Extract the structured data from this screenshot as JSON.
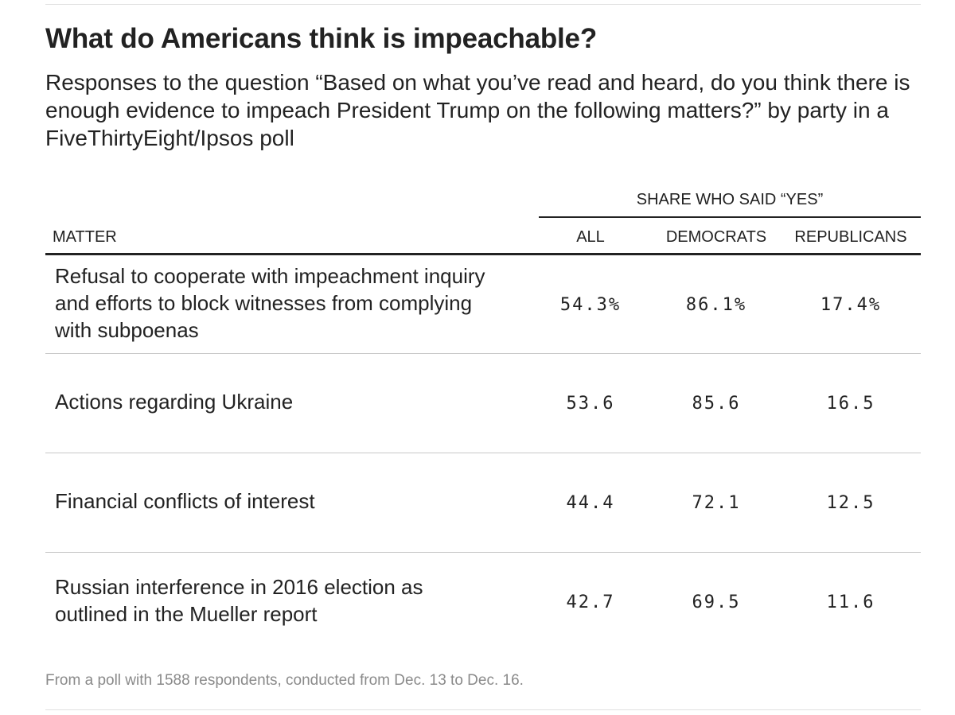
{
  "chart_data": {
    "type": "table",
    "title": "What do Americans think is impeachable?",
    "subtitle": "Responses to the question “Based on what you’ve read and heard, do you think there is enough evidence to impeach President Trump on the following matters?” by party in a FiveThirtyEight/Ipsos poll",
    "group_header": "SHARE WHO SAID “YES”",
    "columns": [
      "MATTER",
      "ALL",
      "DEMOCRATS",
      "REPUBLICANS"
    ],
    "rows": [
      {
        "matter": "Refusal to cooperate with impeachment inquiry and efforts to block witnesses from complying with subpoenas",
        "all": 54.3,
        "democrats": 86.1,
        "republicans": 17.4,
        "all_label": "54.3%",
        "democrats_label": "86.1%",
        "republicans_label": "17.4%"
      },
      {
        "matter": "Actions regarding Ukraine",
        "all": 53.6,
        "democrats": 85.6,
        "republicans": 16.5,
        "all_label": "53.6",
        "democrats_label": "85.6",
        "republicans_label": "16.5"
      },
      {
        "matter": "Financial conflicts of interest",
        "all": 44.4,
        "democrats": 72.1,
        "republicans": 12.5,
        "all_label": "44.4",
        "democrats_label": "72.1",
        "republicans_label": "12.5"
      },
      {
        "matter": "Russian interference in 2016 election as outlined in the Mueller report",
        "all": 42.7,
        "democrats": 69.5,
        "republicans": 11.6,
        "all_label": "42.7",
        "democrats_label": "69.5",
        "republicans_label": "11.6"
      }
    ],
    "footnote": "From a poll with 1588 respondents, conducted from Dec. 13 to Dec. 16."
  }
}
